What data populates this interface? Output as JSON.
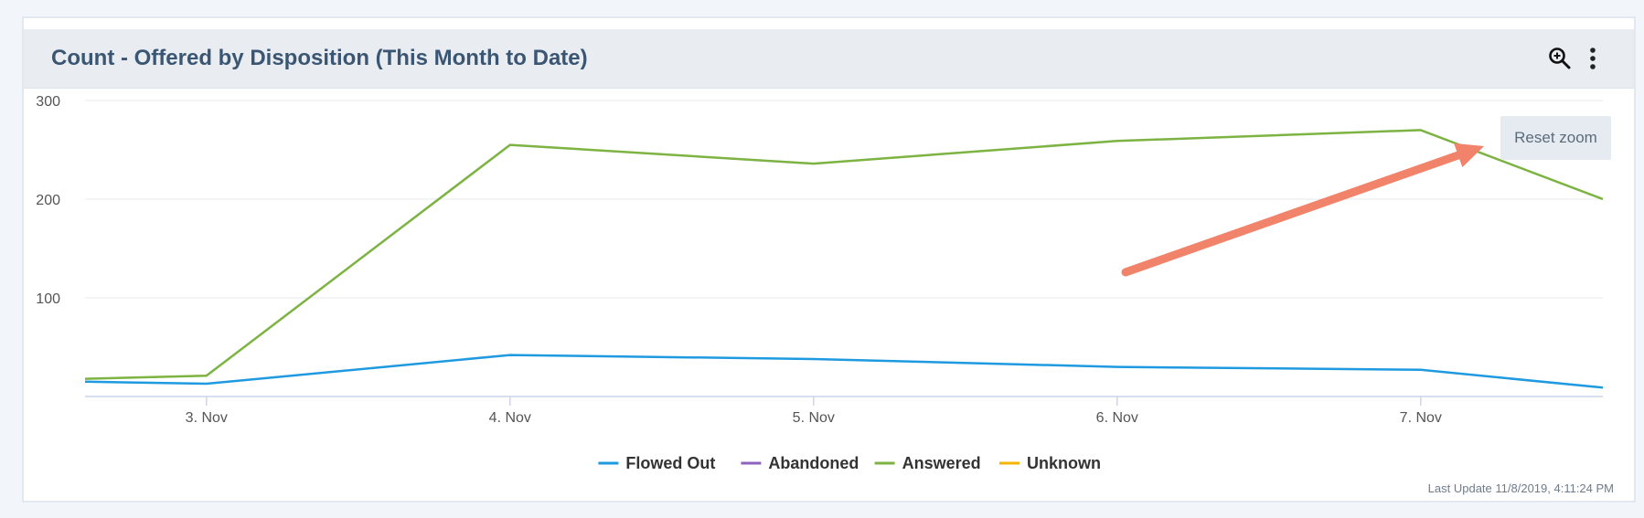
{
  "panel": {
    "title": "Count - Offered by Disposition (This Month to Date)",
    "last_update": "Last Update 11/8/2019, 4:11:24 PM"
  },
  "header_icons": [
    "zoom-icon",
    "more-vertical-icon"
  ],
  "reset_zoom_label": "Reset zoom",
  "annotation": {
    "type": "arrow",
    "color": "#f0836a",
    "points_to": "reset-zoom-button"
  },
  "chart_data": {
    "type": "line",
    "title": "",
    "xlabel": "",
    "ylabel": "",
    "x_domain": [
      2.6,
      7.6
    ],
    "ylim": [
      0,
      300
    ],
    "y_ticks": [
      100,
      200,
      300
    ],
    "y_tick_labels": [
      "100",
      "200",
      "300"
    ],
    "x_ticks": [
      3,
      4,
      5,
      6,
      7
    ],
    "x_tick_labels": [
      "3. Nov",
      "4. Nov",
      "5. Nov",
      "6. Nov",
      "7. Nov"
    ],
    "grid": "horizontal",
    "legend_position": "bottom-center",
    "series": [
      {
        "name": "Flowed Out",
        "color": "#1f9ae0",
        "x": [
          2.6,
          3,
          4,
          5,
          6,
          7,
          7.6
        ],
        "values": [
          15,
          13,
          42,
          38,
          30,
          27,
          9
        ]
      },
      {
        "name": "Abandoned",
        "color": "#8e63bd",
        "x": [],
        "values": []
      },
      {
        "name": "Answered",
        "color": "#7cb342",
        "x": [
          2.6,
          3,
          4,
          5,
          6,
          7,
          7.6
        ],
        "values": [
          18,
          21,
          255,
          236,
          259,
          270,
          200
        ]
      },
      {
        "name": "Unknown",
        "color": "#f4b400",
        "x": [],
        "values": []
      }
    ]
  }
}
